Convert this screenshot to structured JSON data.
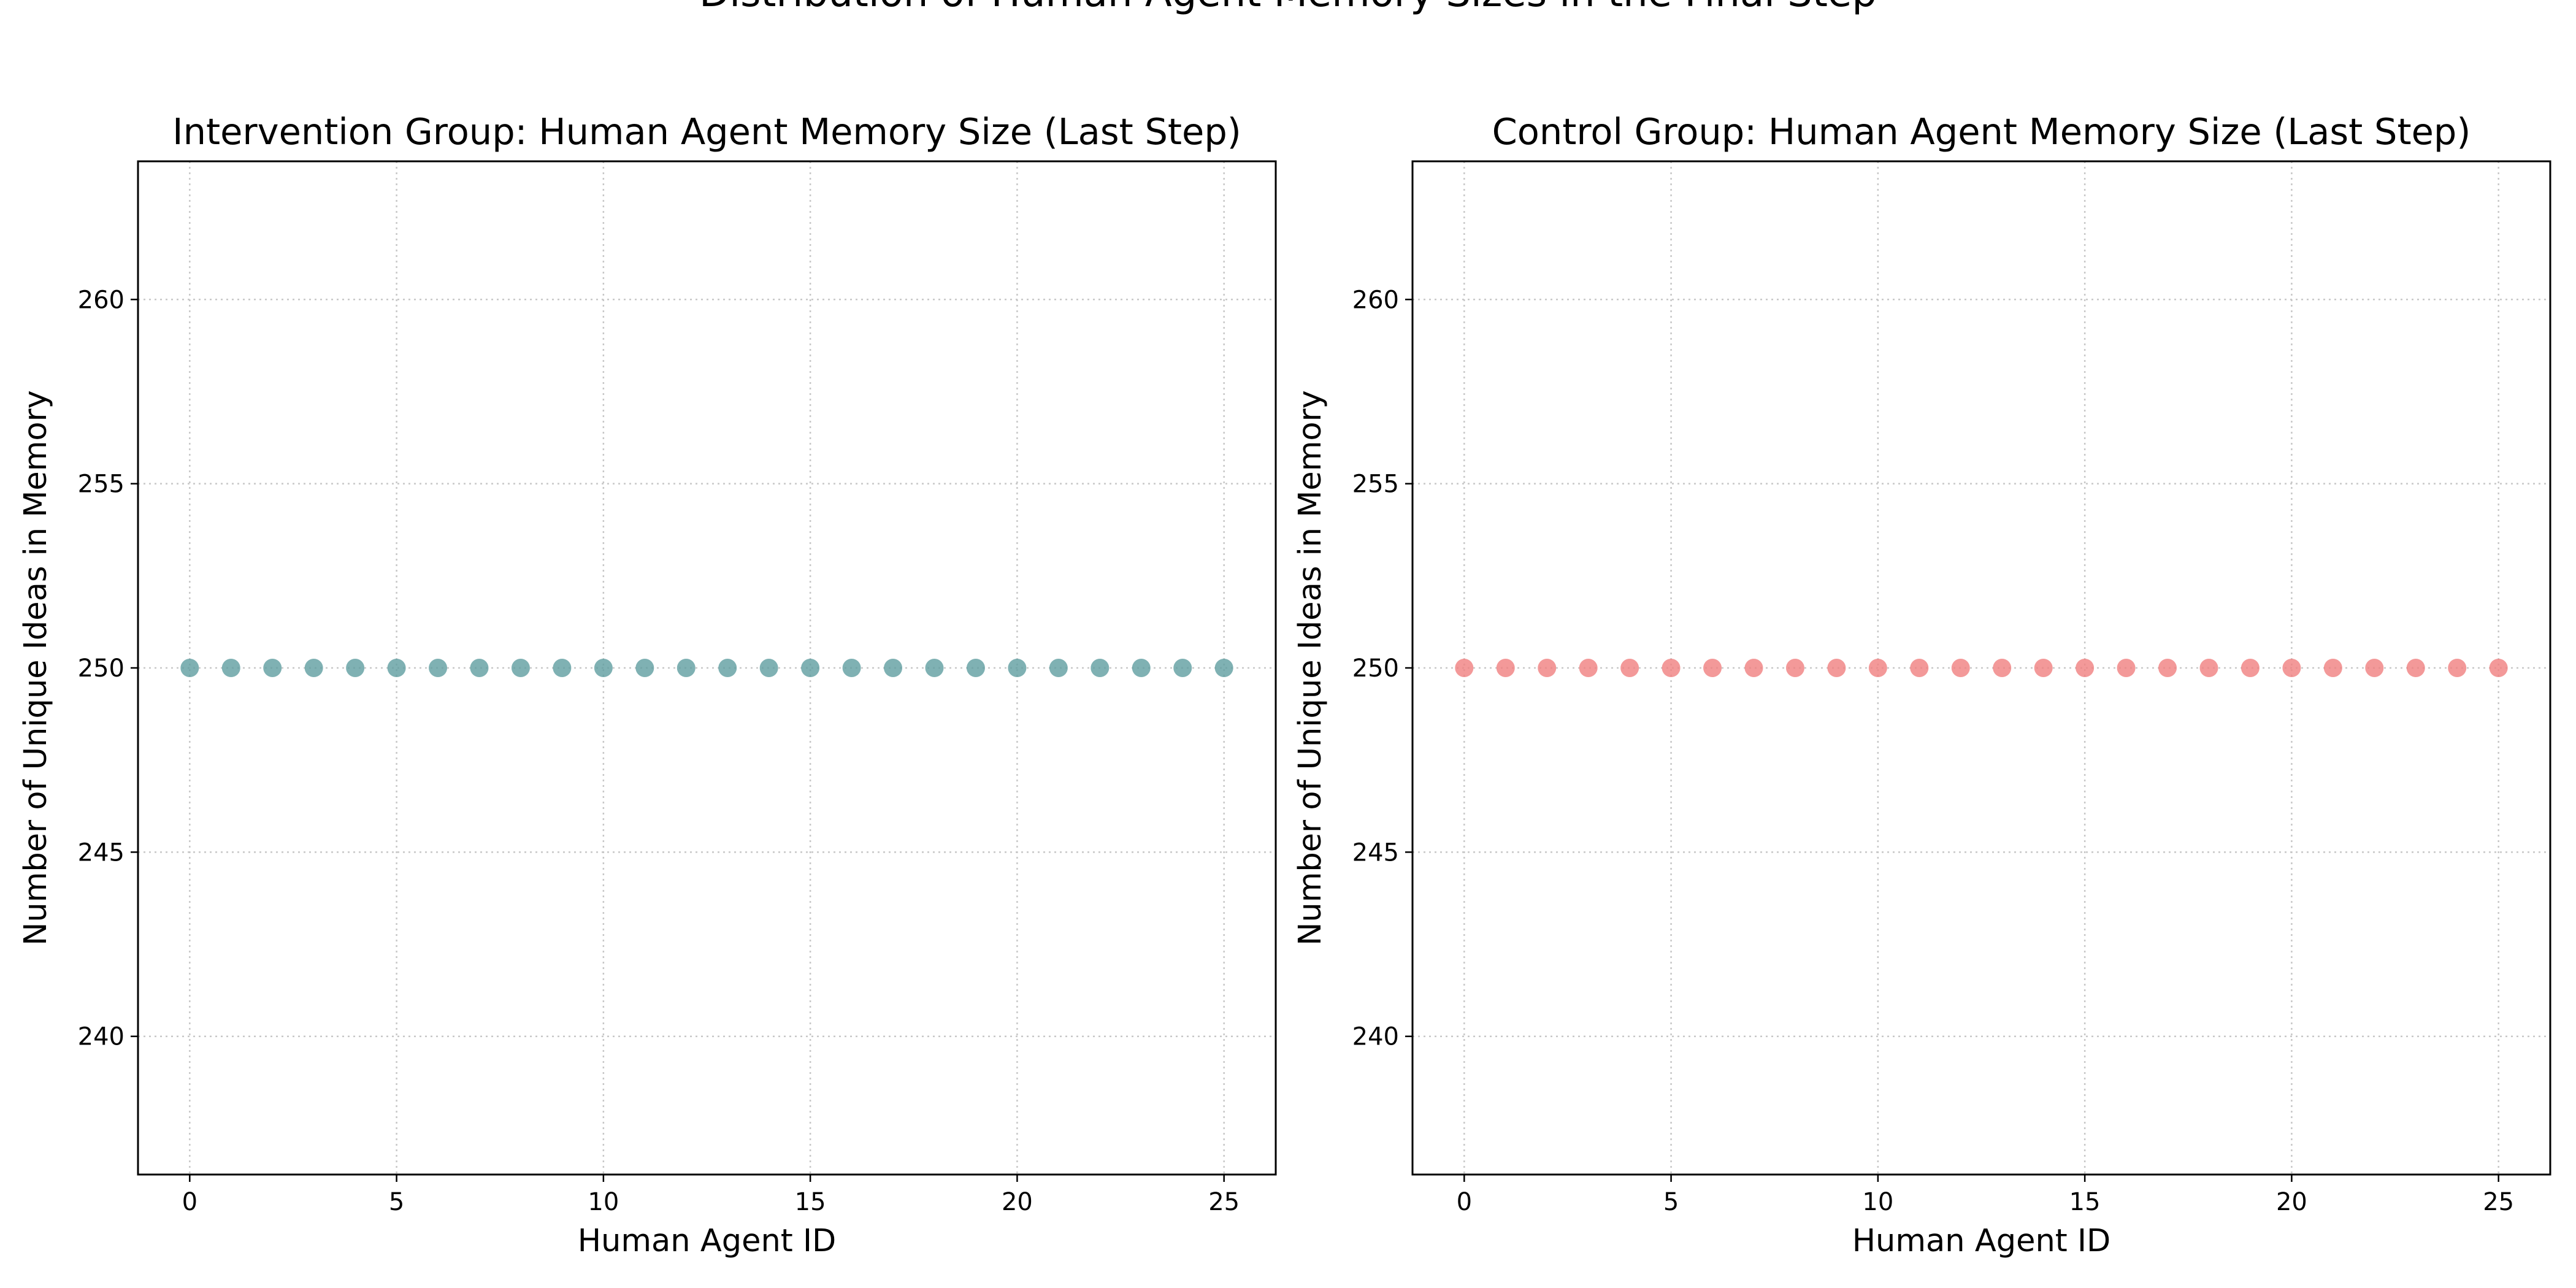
{
  "figure": {
    "suptitle": "Distribution of Human Agent Memory Sizes in the Final Step"
  },
  "chart_data": [
    {
      "type": "scatter",
      "title": "Intervention Group: Human Agent Memory Size (Last Step)",
      "xlabel": "Human Agent ID",
      "ylabel": "Number of Unique Ideas in Memory",
      "xlim": [
        -1.25,
        26.25
      ],
      "ylim": [
        236.25,
        263.75
      ],
      "xticks": [
        0,
        5,
        10,
        15,
        20,
        25
      ],
      "yticks": [
        240,
        245,
        250,
        255,
        260
      ],
      "grid": true,
      "color": "#5f9ea0",
      "series": [
        {
          "x": [
            0,
            1,
            2,
            3,
            4,
            5,
            6,
            7,
            8,
            9,
            10,
            11,
            12,
            13,
            14,
            15,
            16,
            17,
            18,
            19,
            20,
            21,
            22,
            23,
            24,
            25
          ],
          "y": [
            250,
            250,
            250,
            250,
            250,
            250,
            250,
            250,
            250,
            250,
            250,
            250,
            250,
            250,
            250,
            250,
            250,
            250,
            250,
            250,
            250,
            250,
            250,
            250,
            250,
            250
          ]
        }
      ]
    },
    {
      "type": "scatter",
      "title": "Control Group: Human Agent Memory Size (Last Step)",
      "xlabel": "Human Agent ID",
      "ylabel": "Number of Unique Ideas in Memory",
      "xlim": [
        -1.25,
        26.25
      ],
      "ylim": [
        236.25,
        263.75
      ],
      "xticks": [
        0,
        5,
        10,
        15,
        20,
        25
      ],
      "yticks": [
        240,
        245,
        250,
        255,
        260
      ],
      "grid": true,
      "color": "#f08080",
      "series": [
        {
          "x": [
            0,
            1,
            2,
            3,
            4,
            5,
            6,
            7,
            8,
            9,
            10,
            11,
            12,
            13,
            14,
            15,
            16,
            17,
            18,
            19,
            20,
            21,
            22,
            23,
            24,
            25
          ],
          "y": [
            250,
            250,
            250,
            250,
            250,
            250,
            250,
            250,
            250,
            250,
            250,
            250,
            250,
            250,
            250,
            250,
            250,
            250,
            250,
            250,
            250,
            250,
            250,
            250,
            250,
            250
          ]
        }
      ]
    }
  ]
}
